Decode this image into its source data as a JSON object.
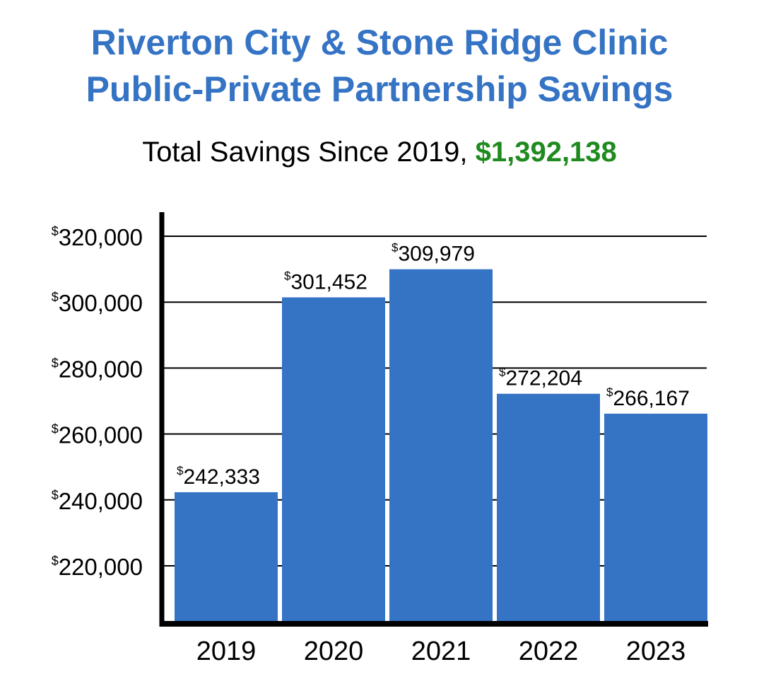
{
  "title_line1": "Riverton City & Stone Ridge Clinic",
  "title_line2": "Public-Private Partnership Savings",
  "subtitle_prefix": "Total Savings Since 2019, ",
  "subtitle_total": "$1,392,138",
  "colors": {
    "title": "#3573c4",
    "bar": "#3573c4",
    "total": "#1f8b1f",
    "axis": "#000000",
    "grid": "#000000"
  },
  "chart_data": {
    "type": "bar",
    "title": "Riverton City & Stone Ridge Clinic Public-Private Partnership Savings",
    "subtitle": "Total Savings Since 2019, $1,392,138",
    "categories": [
      "2019",
      "2020",
      "2021",
      "2022",
      "2023"
    ],
    "values": [
      242333,
      301452,
      309979,
      272204,
      266167
    ],
    "data_label_prefix": "$",
    "data_labels": [
      "242,333",
      "301,452",
      "309,979",
      "272,204",
      "266,167"
    ],
    "y_ticks": [
      220000,
      240000,
      260000,
      280000,
      300000,
      320000
    ],
    "y_tick_prefix": "$",
    "y_tick_labels": [
      "220,000",
      "240,000",
      "260,000",
      "280,000",
      "300,000",
      "320,000"
    ],
    "ylim": [
      203000,
      327000
    ],
    "grid": true,
    "xlabel": "",
    "ylabel": ""
  }
}
